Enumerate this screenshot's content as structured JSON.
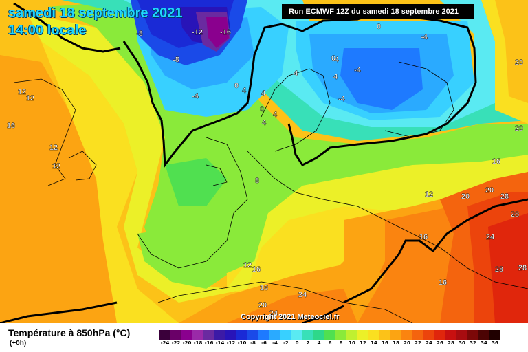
{
  "header": {
    "title_line1": "samedi 18 septembre 2021",
    "title_line2": "14:00 locale",
    "run_info": "Run ECMWF 12Z du samedi 18 septembre 2021"
  },
  "footer": {
    "copyright": "Copyright 2021 Meteociel.fr",
    "legend_title": "Température à 850hPa (°C)",
    "legend_subtitle": "(+0h)"
  },
  "scale": {
    "labels": [
      "-24",
      "-22",
      "-20",
      "-18",
      "-16",
      "-14",
      "-12",
      "-10",
      "-8",
      "-6",
      "-4",
      "-2",
      "0",
      "2",
      "4",
      "6",
      "8",
      "10",
      "12",
      "14",
      "16",
      "18",
      "20",
      "22",
      "24",
      "26",
      "28",
      "30",
      "32",
      "34",
      "36"
    ],
    "colors": [
      "#3a003a",
      "#6a0068",
      "#8a008e",
      "#9a2aa8",
      "#6a2aa0",
      "#3c1aa6",
      "#2814b8",
      "#1a2ad6",
      "#1a4ae8",
      "#1e7aff",
      "#2aaaff",
      "#38d0ff",
      "#5aeaf2",
      "#38e0b8",
      "#2ed88a",
      "#50e050",
      "#8aea3a",
      "#c0f030",
      "#ecf028",
      "#fae020",
      "#fcc218",
      "#fca412",
      "#fa8410",
      "#f4640e",
      "#ec440c",
      "#e0260c",
      "#c81010",
      "#a80c10",
      "#7c0808",
      "#4c0404",
      "#200000"
    ]
  },
  "isotherm_labels": [
    {
      "text": "-8"
    },
    {
      "text": "-12"
    },
    {
      "text": "-16"
    },
    {
      "text": "-8"
    },
    {
      "text": "0"
    },
    {
      "text": "-4"
    },
    {
      "text": "12"
    },
    {
      "text": "12"
    },
    {
      "text": "16"
    },
    {
      "text": "12"
    },
    {
      "text": "12"
    },
    {
      "text": "4"
    },
    {
      "text": "4"
    },
    {
      "text": "4"
    },
    {
      "text": "0"
    },
    {
      "text": "4"
    },
    {
      "text": "4"
    },
    {
      "text": "0"
    },
    {
      "text": "-4"
    },
    {
      "text": "-4"
    },
    {
      "text": "4"
    },
    {
      "text": "0"
    },
    {
      "text": "-4"
    },
    {
      "text": "-4"
    },
    {
      "text": "20"
    },
    {
      "text": "20"
    },
    {
      "text": "16"
    },
    {
      "text": "20"
    },
    {
      "text": "20"
    },
    {
      "text": "28"
    },
    {
      "text": "28"
    },
    {
      "text": "28"
    },
    {
      "text": "24"
    },
    {
      "text": "28"
    },
    {
      "text": "16"
    },
    {
      "text": "12"
    },
    {
      "text": "8"
    },
    {
      "text": "12"
    },
    {
      "text": "16"
    },
    {
      "text": "16"
    },
    {
      "text": "24"
    },
    {
      "text": "20"
    },
    {
      "text": "24"
    },
    {
      "text": "16"
    }
  ]
}
